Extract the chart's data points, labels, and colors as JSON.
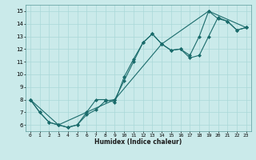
{
  "xlabel": "Humidex (Indice chaleur)",
  "xlim": [
    -0.5,
    23.5
  ],
  "ylim": [
    5.5,
    15.5
  ],
  "xticks": [
    0,
    1,
    2,
    3,
    4,
    5,
    6,
    7,
    8,
    9,
    10,
    11,
    12,
    13,
    14,
    15,
    16,
    17,
    18,
    19,
    20,
    21,
    22,
    23
  ],
  "yticks": [
    6,
    7,
    8,
    9,
    10,
    11,
    12,
    13,
    14,
    15
  ],
  "background_color": "#caeaea",
  "grid_color": "#aad8d8",
  "line_color": "#1a6b6b",
  "marker": "D",
  "markersize": 2.0,
  "linewidth": 0.8,
  "lines": [
    {
      "x": [
        0,
        1,
        2,
        3,
        4,
        5,
        6,
        7,
        8,
        9,
        10,
        11,
        12,
        13,
        14,
        15,
        16,
        17,
        18,
        19,
        20,
        21,
        22,
        23
      ],
      "y": [
        8,
        7,
        6.2,
        6,
        5.8,
        6,
        7,
        8,
        8,
        7.8,
        9.8,
        11.2,
        12.5,
        13.2,
        12.4,
        11.9,
        12,
        11.5,
        13,
        15,
        14.4,
        14.2,
        13.5,
        13.7
      ]
    },
    {
      "x": [
        0,
        1,
        2,
        3,
        4,
        5,
        6,
        7,
        8,
        9,
        10,
        11,
        12,
        13,
        14,
        15,
        16,
        17,
        18,
        19,
        20,
        21,
        22,
        23
      ],
      "y": [
        8,
        7,
        6.2,
        6,
        5.8,
        6,
        6.8,
        7.2,
        7.9,
        8,
        9.5,
        11,
        12.5,
        13.2,
        12.4,
        11.9,
        12,
        11.3,
        11.5,
        13,
        14.5,
        14.2,
        13.5,
        13.7
      ]
    },
    {
      "x": [
        0,
        3,
        9,
        14,
        19,
        23
      ],
      "y": [
        8,
        6,
        8,
        12.4,
        15,
        13.7
      ]
    }
  ]
}
